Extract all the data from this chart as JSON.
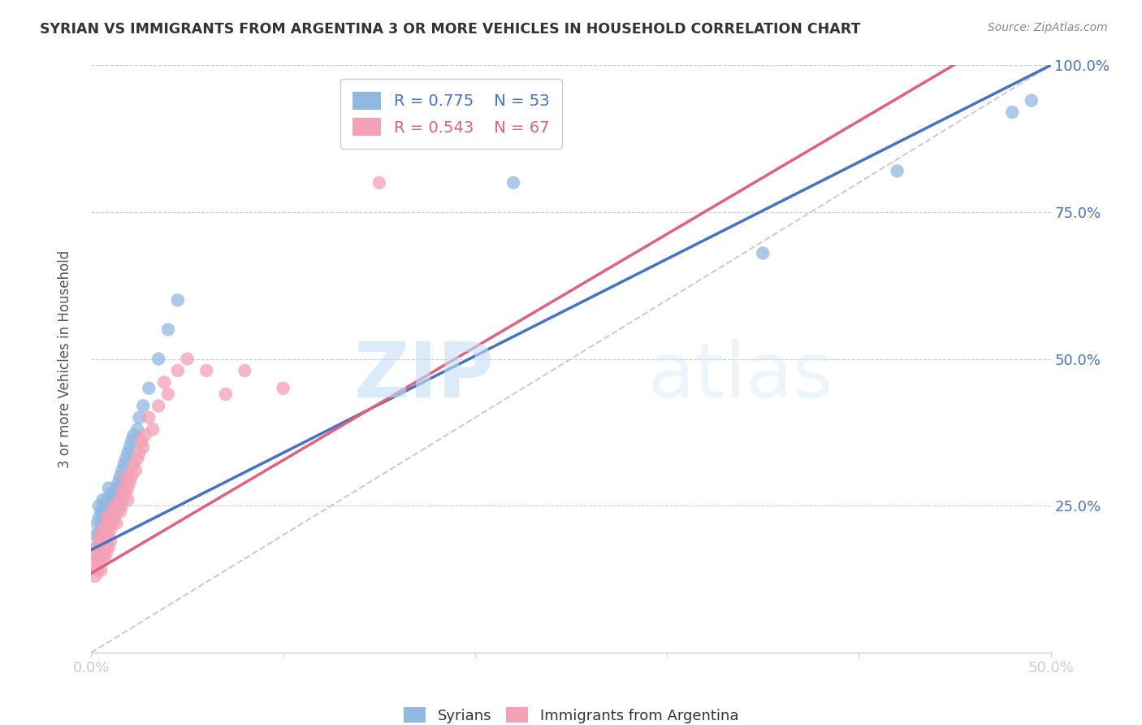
{
  "title": "SYRIAN VS IMMIGRANTS FROM ARGENTINA 3 OR MORE VEHICLES IN HOUSEHOLD CORRELATION CHART",
  "source": "Source: ZipAtlas.com",
  "ylabel": "3 or more Vehicles in Household",
  "xlim": [
    0.0,
    0.5
  ],
  "ylim": [
    0.0,
    1.0
  ],
  "legend_syrian_R": "R = 0.775",
  "legend_syrian_N": "N = 53",
  "legend_arg_R": "R = 0.543",
  "legend_arg_N": "N = 67",
  "syrian_color": "#91b8e0",
  "argentina_color": "#f4a0b5",
  "syrian_line_color": "#4472c4",
  "argentina_line_color": "#e06080",
  "diagonal_color": "#cccccc",
  "watermark_zip": "ZIP",
  "watermark_atlas": "atlas",
  "syrian_line_x0": 0.0,
  "syrian_line_y0": 0.175,
  "syrian_line_x1": 0.5,
  "syrian_line_y1": 1.0,
  "argentina_line_x0": 0.0,
  "argentina_line_y0": 0.135,
  "argentina_line_x1": 0.2,
  "argentina_line_y1": 0.52,
  "syrian_scatter_x": [
    0.002,
    0.003,
    0.003,
    0.004,
    0.004,
    0.004,
    0.005,
    0.005,
    0.005,
    0.006,
    0.006,
    0.006,
    0.007,
    0.007,
    0.007,
    0.008,
    0.008,
    0.009,
    0.009,
    0.009,
    0.01,
    0.01,
    0.01,
    0.011,
    0.011,
    0.012,
    0.012,
    0.013,
    0.013,
    0.014,
    0.014,
    0.015,
    0.015,
    0.016,
    0.016,
    0.017,
    0.018,
    0.019,
    0.02,
    0.021,
    0.022,
    0.024,
    0.025,
    0.027,
    0.03,
    0.035,
    0.04,
    0.045,
    0.22,
    0.35,
    0.42,
    0.48,
    0.49
  ],
  "syrian_scatter_y": [
    0.2,
    0.22,
    0.18,
    0.23,
    0.2,
    0.25,
    0.22,
    0.24,
    0.2,
    0.24,
    0.22,
    0.26,
    0.23,
    0.25,
    0.21,
    0.24,
    0.26,
    0.22,
    0.24,
    0.28,
    0.23,
    0.25,
    0.27,
    0.26,
    0.24,
    0.27,
    0.25,
    0.28,
    0.26,
    0.29,
    0.27,
    0.3,
    0.28,
    0.31,
    0.29,
    0.32,
    0.33,
    0.34,
    0.35,
    0.36,
    0.37,
    0.38,
    0.4,
    0.42,
    0.45,
    0.5,
    0.55,
    0.6,
    0.8,
    0.68,
    0.82,
    0.92,
    0.94
  ],
  "argentina_scatter_x": [
    0.001,
    0.002,
    0.002,
    0.003,
    0.003,
    0.003,
    0.004,
    0.004,
    0.004,
    0.005,
    0.005,
    0.005,
    0.005,
    0.006,
    0.006,
    0.006,
    0.007,
    0.007,
    0.007,
    0.008,
    0.008,
    0.008,
    0.008,
    0.009,
    0.009,
    0.009,
    0.01,
    0.01,
    0.01,
    0.011,
    0.011,
    0.012,
    0.012,
    0.013,
    0.013,
    0.014,
    0.015,
    0.015,
    0.016,
    0.016,
    0.017,
    0.018,
    0.018,
    0.019,
    0.019,
    0.02,
    0.021,
    0.022,
    0.023,
    0.024,
    0.025,
    0.026,
    0.027,
    0.028,
    0.03,
    0.032,
    0.035,
    0.038,
    0.04,
    0.045,
    0.05,
    0.06,
    0.07,
    0.08,
    0.1,
    0.15,
    0.17
  ],
  "argentina_scatter_y": [
    0.15,
    0.17,
    0.13,
    0.16,
    0.18,
    0.14,
    0.17,
    0.19,
    0.15,
    0.16,
    0.18,
    0.2,
    0.14,
    0.17,
    0.19,
    0.21,
    0.18,
    0.2,
    0.16,
    0.19,
    0.21,
    0.17,
    0.23,
    0.2,
    0.22,
    0.18,
    0.21,
    0.23,
    0.19,
    0.22,
    0.24,
    0.23,
    0.25,
    0.24,
    0.22,
    0.25,
    0.26,
    0.24,
    0.27,
    0.25,
    0.28,
    0.27,
    0.3,
    0.28,
    0.26,
    0.29,
    0.3,
    0.32,
    0.31,
    0.33,
    0.34,
    0.36,
    0.35,
    0.37,
    0.4,
    0.38,
    0.42,
    0.46,
    0.44,
    0.48,
    0.5,
    0.48,
    0.44,
    0.48,
    0.45,
    0.8,
    0.92
  ]
}
